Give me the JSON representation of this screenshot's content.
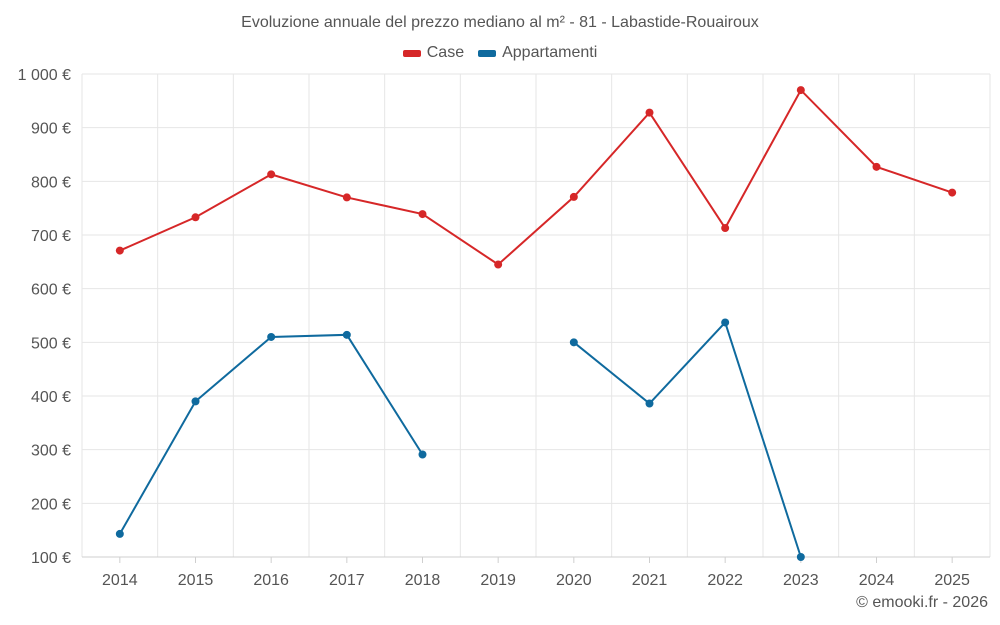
{
  "chart_data": {
    "type": "line",
    "title": "Evoluzione annuale del prezzo mediano al m² - 81 - Labastide-Rouairoux",
    "xlabel": "",
    "ylabel": "",
    "categories": [
      "2014",
      "2015",
      "2016",
      "2017",
      "2018",
      "2019",
      "2020",
      "2021",
      "2022",
      "2023",
      "2024",
      "2025"
    ],
    "ylim": [
      100,
      1000
    ],
    "yticks": [
      100,
      200,
      300,
      400,
      500,
      600,
      700,
      800,
      900,
      1000
    ],
    "ytick_labels": [
      "100 €",
      "200 €",
      "300 €",
      "400 €",
      "500 €",
      "600 €",
      "700 €",
      "800 €",
      "900 €",
      "1 000 €"
    ],
    "grid": true,
    "legend_position": "top-center",
    "series": [
      {
        "name": "Case",
        "color": "#d62728",
        "values": [
          671,
          733,
          813,
          770,
          739,
          645,
          771,
          928,
          713,
          970,
          827,
          779
        ]
      },
      {
        "name": "Appartamenti",
        "color": "#0f6a9e",
        "values": [
          143,
          390,
          510,
          514,
          291,
          null,
          500,
          386,
          537,
          100,
          null,
          null
        ]
      }
    ]
  },
  "footer": {
    "copyright": "© emooki.fr - 2026"
  }
}
